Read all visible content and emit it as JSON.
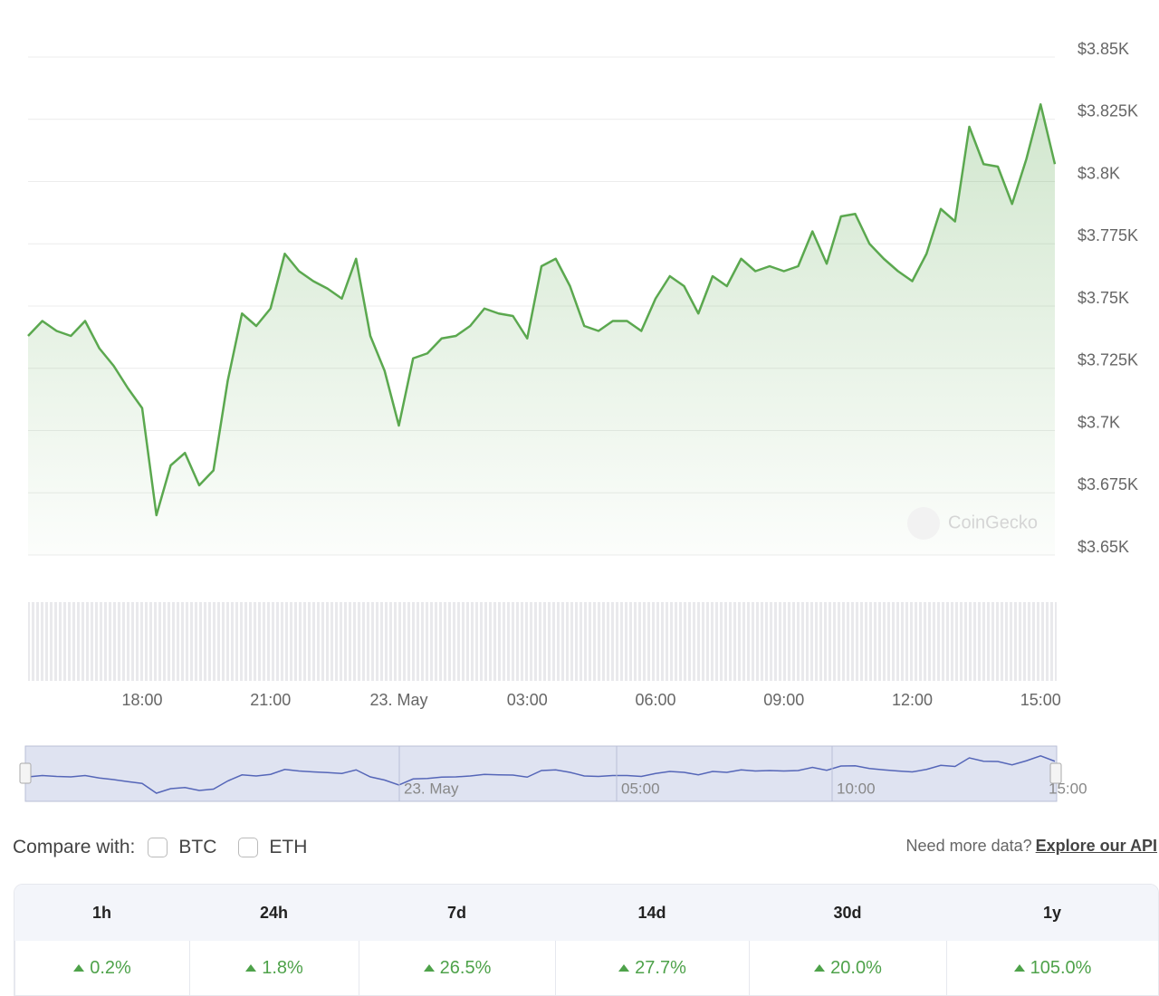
{
  "chart_data": {
    "type": "line",
    "categories": [
      null,
      null,
      null,
      null,
      null,
      null,
      null,
      null,
      "18:00",
      null,
      null,
      null,
      null,
      null,
      null,
      null,
      null,
      "21:00",
      null,
      null,
      null,
      null,
      null,
      null,
      null,
      null,
      "23. May",
      null,
      null,
      null,
      null,
      null,
      null,
      null,
      null,
      "03:00",
      null,
      null,
      null,
      null,
      null,
      null,
      null,
      null,
      "06:00",
      null,
      null,
      null,
      null,
      null,
      null,
      null,
      null,
      "09:00",
      null,
      null,
      null,
      null,
      null,
      null,
      null,
      null,
      "12:00",
      null,
      null,
      null,
      null,
      null,
      null,
      null,
      null,
      "15:00",
      null
    ],
    "series": [
      {
        "name": "Price",
        "color": "#5ba84f",
        "values": [
          3738,
          3744,
          3740,
          3738,
          3744,
          3733,
          3726,
          3717,
          3709,
          3666,
          3686,
          3691,
          3678,
          3684,
          3720,
          3747,
          3742,
          3749,
          3771,
          3764,
          3760,
          3757,
          3753,
          3769,
          3738,
          3724,
          3702,
          3729,
          3731,
          3737,
          3738,
          3742,
          3749,
          3747,
          3746,
          3737,
          3766,
          3769,
          3758,
          3742,
          3740,
          3744,
          3744,
          3740,
          3753,
          3762,
          3758,
          3747,
          3762,
          3758,
          3769,
          3764,
          3766,
          3764,
          3766,
          3780,
          3767,
          3786,
          3787,
          3775,
          3769,
          3764,
          3760,
          3771,
          3789,
          3784,
          3822,
          3807,
          3806,
          3791,
          3809,
          3831,
          3807
        ]
      }
    ],
    "ylim": [
      3650,
      3850
    ],
    "yticks": [
      {
        "value": 3650,
        "label": "$3.65K"
      },
      {
        "value": 3675,
        "label": "$3.675K"
      },
      {
        "value": 3700,
        "label": "$3.7K"
      },
      {
        "value": 3725,
        "label": "$3.725K"
      },
      {
        "value": 3750,
        "label": "$3.75K"
      },
      {
        "value": 3775,
        "label": "$3.775K"
      },
      {
        "value": 3800,
        "label": "$3.8K"
      },
      {
        "value": 3825,
        "label": "$3.825K"
      },
      {
        "value": 3850,
        "label": "$3.85K"
      }
    ],
    "grid": true,
    "watermark": "CoinGecko",
    "navigator_labels": [
      "23. May",
      "05:00",
      "10:00",
      "15:00"
    ]
  },
  "compare": {
    "label": "Compare with:",
    "options": [
      "BTC",
      "ETH"
    ]
  },
  "api": {
    "text": "Need more data?",
    "link": "Explore our API"
  },
  "performance": {
    "periods": [
      "1h",
      "24h",
      "7d",
      "14d",
      "30d",
      "1y"
    ],
    "changes": [
      "0.2%",
      "1.8%",
      "26.5%",
      "27.7%",
      "20.0%",
      "105.0%"
    ]
  }
}
